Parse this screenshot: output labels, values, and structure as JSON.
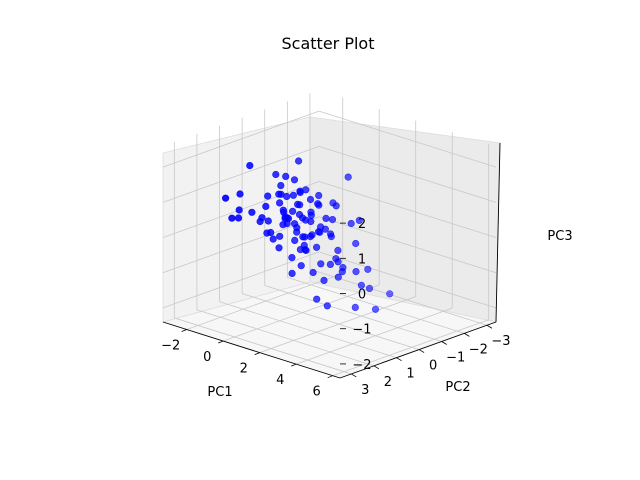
{
  "chart_data": {
    "type": "scatter",
    "projection": "3d",
    "title": "Scatter Plot",
    "xlabel": "PC1",
    "ylabel": "PC2",
    "zlabel": "PC3",
    "xlim": [
      -3.3,
      6.4
    ],
    "ylim": [
      -3.4,
      3.5
    ],
    "zlim": [
      -2.4,
      2.6
    ],
    "xticks": [
      -2,
      0,
      2,
      4,
      6
    ],
    "yticks": [
      -3,
      -2,
      -1,
      0,
      1,
      2,
      3
    ],
    "zticks": [
      -2,
      -1,
      0,
      1,
      2
    ],
    "grid": true,
    "marker_color": "#0000ff",
    "points": [
      [
        -0.7,
        -0.4,
        1.7
      ],
      [
        -2.4,
        -1.2,
        0.8
      ],
      [
        -2.1,
        -1.6,
        0.3
      ],
      [
        -1.6,
        -0.6,
        0.5
      ],
      [
        -1.0,
        0.2,
        0.6
      ],
      [
        -0.3,
        0.1,
        0.1
      ],
      [
        0.3,
        1.0,
        0.6
      ],
      [
        0.5,
        0.3,
        -0.1
      ],
      [
        -0.8,
        -1.0,
        -0.6
      ],
      [
        -1.9,
        0.7,
        0.3
      ],
      [
        -0.9,
        -0.6,
        0.1
      ],
      [
        0.1,
        -0.3,
        0.4
      ],
      [
        0.6,
        0.6,
        0.9
      ],
      [
        1.2,
        1.4,
        1.0
      ],
      [
        -0.4,
        0.5,
        0.5
      ],
      [
        1.4,
        0.5,
        -0.2
      ],
      [
        -1.3,
        -0.7,
        1.0
      ],
      [
        0.3,
        1.1,
        0.4
      ],
      [
        -0.1,
        -0.8,
        -0.3
      ],
      [
        1.0,
        0.0,
        0.2
      ],
      [
        2.8,
        -0.1,
        0.0
      ],
      [
        -1.7,
        -0.2,
        1.2
      ],
      [
        0.6,
        0.4,
        -0.3
      ],
      [
        -1.5,
        -1.0,
        0.2
      ],
      [
        0.4,
        -0.4,
        0.9
      ],
      [
        -0.6,
        1.3,
        0.5
      ],
      [
        1.2,
        2.0,
        0.1
      ],
      [
        0.1,
        -1.2,
        -0.5
      ],
      [
        2.2,
        1.3,
        -0.6
      ],
      [
        0.8,
        1.1,
        -0.9
      ],
      [
        -2.0,
        1.5,
        0.3
      ],
      [
        3.2,
        1.0,
        -0.2
      ],
      [
        0.5,
        0.8,
        1.2
      ],
      [
        -1.1,
        0.4,
        -0.4
      ],
      [
        -0.2,
        0.3,
        -0.8
      ],
      [
        1.6,
        -0.3,
        -1.2
      ],
      [
        3.0,
        2.4,
        0.8
      ],
      [
        0.9,
        -1.3,
        1.3
      ],
      [
        4.8,
        1.5,
        -0.1
      ],
      [
        5.6,
        2.0,
        1.6
      ],
      [
        5.9,
        2.6,
        1.7
      ],
      [
        3.9,
        2.1,
        1.4
      ],
      [
        -0.9,
        1.6,
        2.0
      ],
      [
        -0.3,
        0.8,
        1.1
      ],
      [
        1.9,
        0.2,
        0.6
      ],
      [
        0.2,
        0.5,
        -0.2
      ],
      [
        -1.2,
        0.6,
        -0.2
      ],
      [
        -2.1,
        1.7,
        0.9
      ],
      [
        2.6,
        0.6,
        1.2
      ],
      [
        -1.3,
        -1.2,
        0.6
      ],
      [
        1.5,
        -1.4,
        -1.7
      ],
      [
        3.4,
        0.4,
        -1.6
      ],
      [
        5.0,
        0.8,
        -1.3
      ],
      [
        3.3,
        -1.2,
        -1.6
      ],
      [
        1.7,
        -1.6,
        -1.8
      ],
      [
        0.7,
        -1.2,
        -1.4
      ],
      [
        2.3,
        0.9,
        -0.9
      ],
      [
        0.3,
        0.1,
        0.3
      ],
      [
        -0.5,
        -0.3,
        0.9
      ],
      [
        0.0,
        1.4,
        0.2
      ],
      [
        -0.3,
        0.6,
        0.6
      ],
      [
        -1.8,
        -0.5,
        0.8
      ],
      [
        1.1,
        1.5,
        0.8
      ],
      [
        2.1,
        -0.1,
        -0.8
      ],
      [
        0.6,
        -1.0,
        -1.0
      ],
      [
        -0.4,
        -1.0,
        0.4
      ],
      [
        1.3,
        -0.2,
        0.0
      ],
      [
        -0.7,
        0.2,
        0.2
      ],
      [
        0.2,
        -0.2,
        0.8
      ],
      [
        -1.9,
        0.0,
        0.6
      ],
      [
        1.3,
        1.1,
        -0.6
      ],
      [
        -0.8,
        0.3,
        0.9
      ],
      [
        0.0,
        1.0,
        0.0
      ],
      [
        3.6,
        1.8,
        -1.2
      ],
      [
        0.2,
        0.0,
        -0.6
      ],
      [
        1.7,
        1.0,
        0.7
      ],
      [
        -1.1,
        -0.9,
        -0.1
      ],
      [
        -0.3,
        -1.6,
        0.3
      ],
      [
        0.6,
        2.1,
        1.2
      ],
      [
        1.7,
        0.6,
        0.3
      ],
      [
        2.0,
        0.8,
        -0.5
      ],
      [
        -1.6,
        1.5,
        0.6
      ],
      [
        0.9,
        1.4,
        0.6
      ],
      [
        2.1,
        -1.2,
        -1.1
      ],
      [
        0.4,
        0.2,
        -0.5
      ],
      [
        -1.2,
        0.9,
        0.2
      ],
      [
        -0.6,
        -0.4,
        -0.8
      ],
      [
        -0.4,
        2.5,
        0.8
      ],
      [
        0.9,
        0.0,
        0.8
      ],
      [
        1.7,
        -0.2,
        -0.4
      ],
      [
        -1.0,
        0.7,
        0.2
      ],
      [
        1.3,
        1.3,
        0.4
      ],
      [
        -0.5,
        -0.8,
        0.1
      ],
      [
        2.9,
        1.1,
        -0.3
      ],
      [
        -2.3,
        0.9,
        0.8
      ],
      [
        1.9,
        0.9,
        -1.5
      ],
      [
        -0.1,
        -1.1,
        -0.3
      ],
      [
        1.4,
        0.7,
        0.2
      ],
      [
        -0.7,
        0.1,
        0.2
      ],
      [
        1.8,
        1.7,
        0.7
      ]
    ]
  }
}
